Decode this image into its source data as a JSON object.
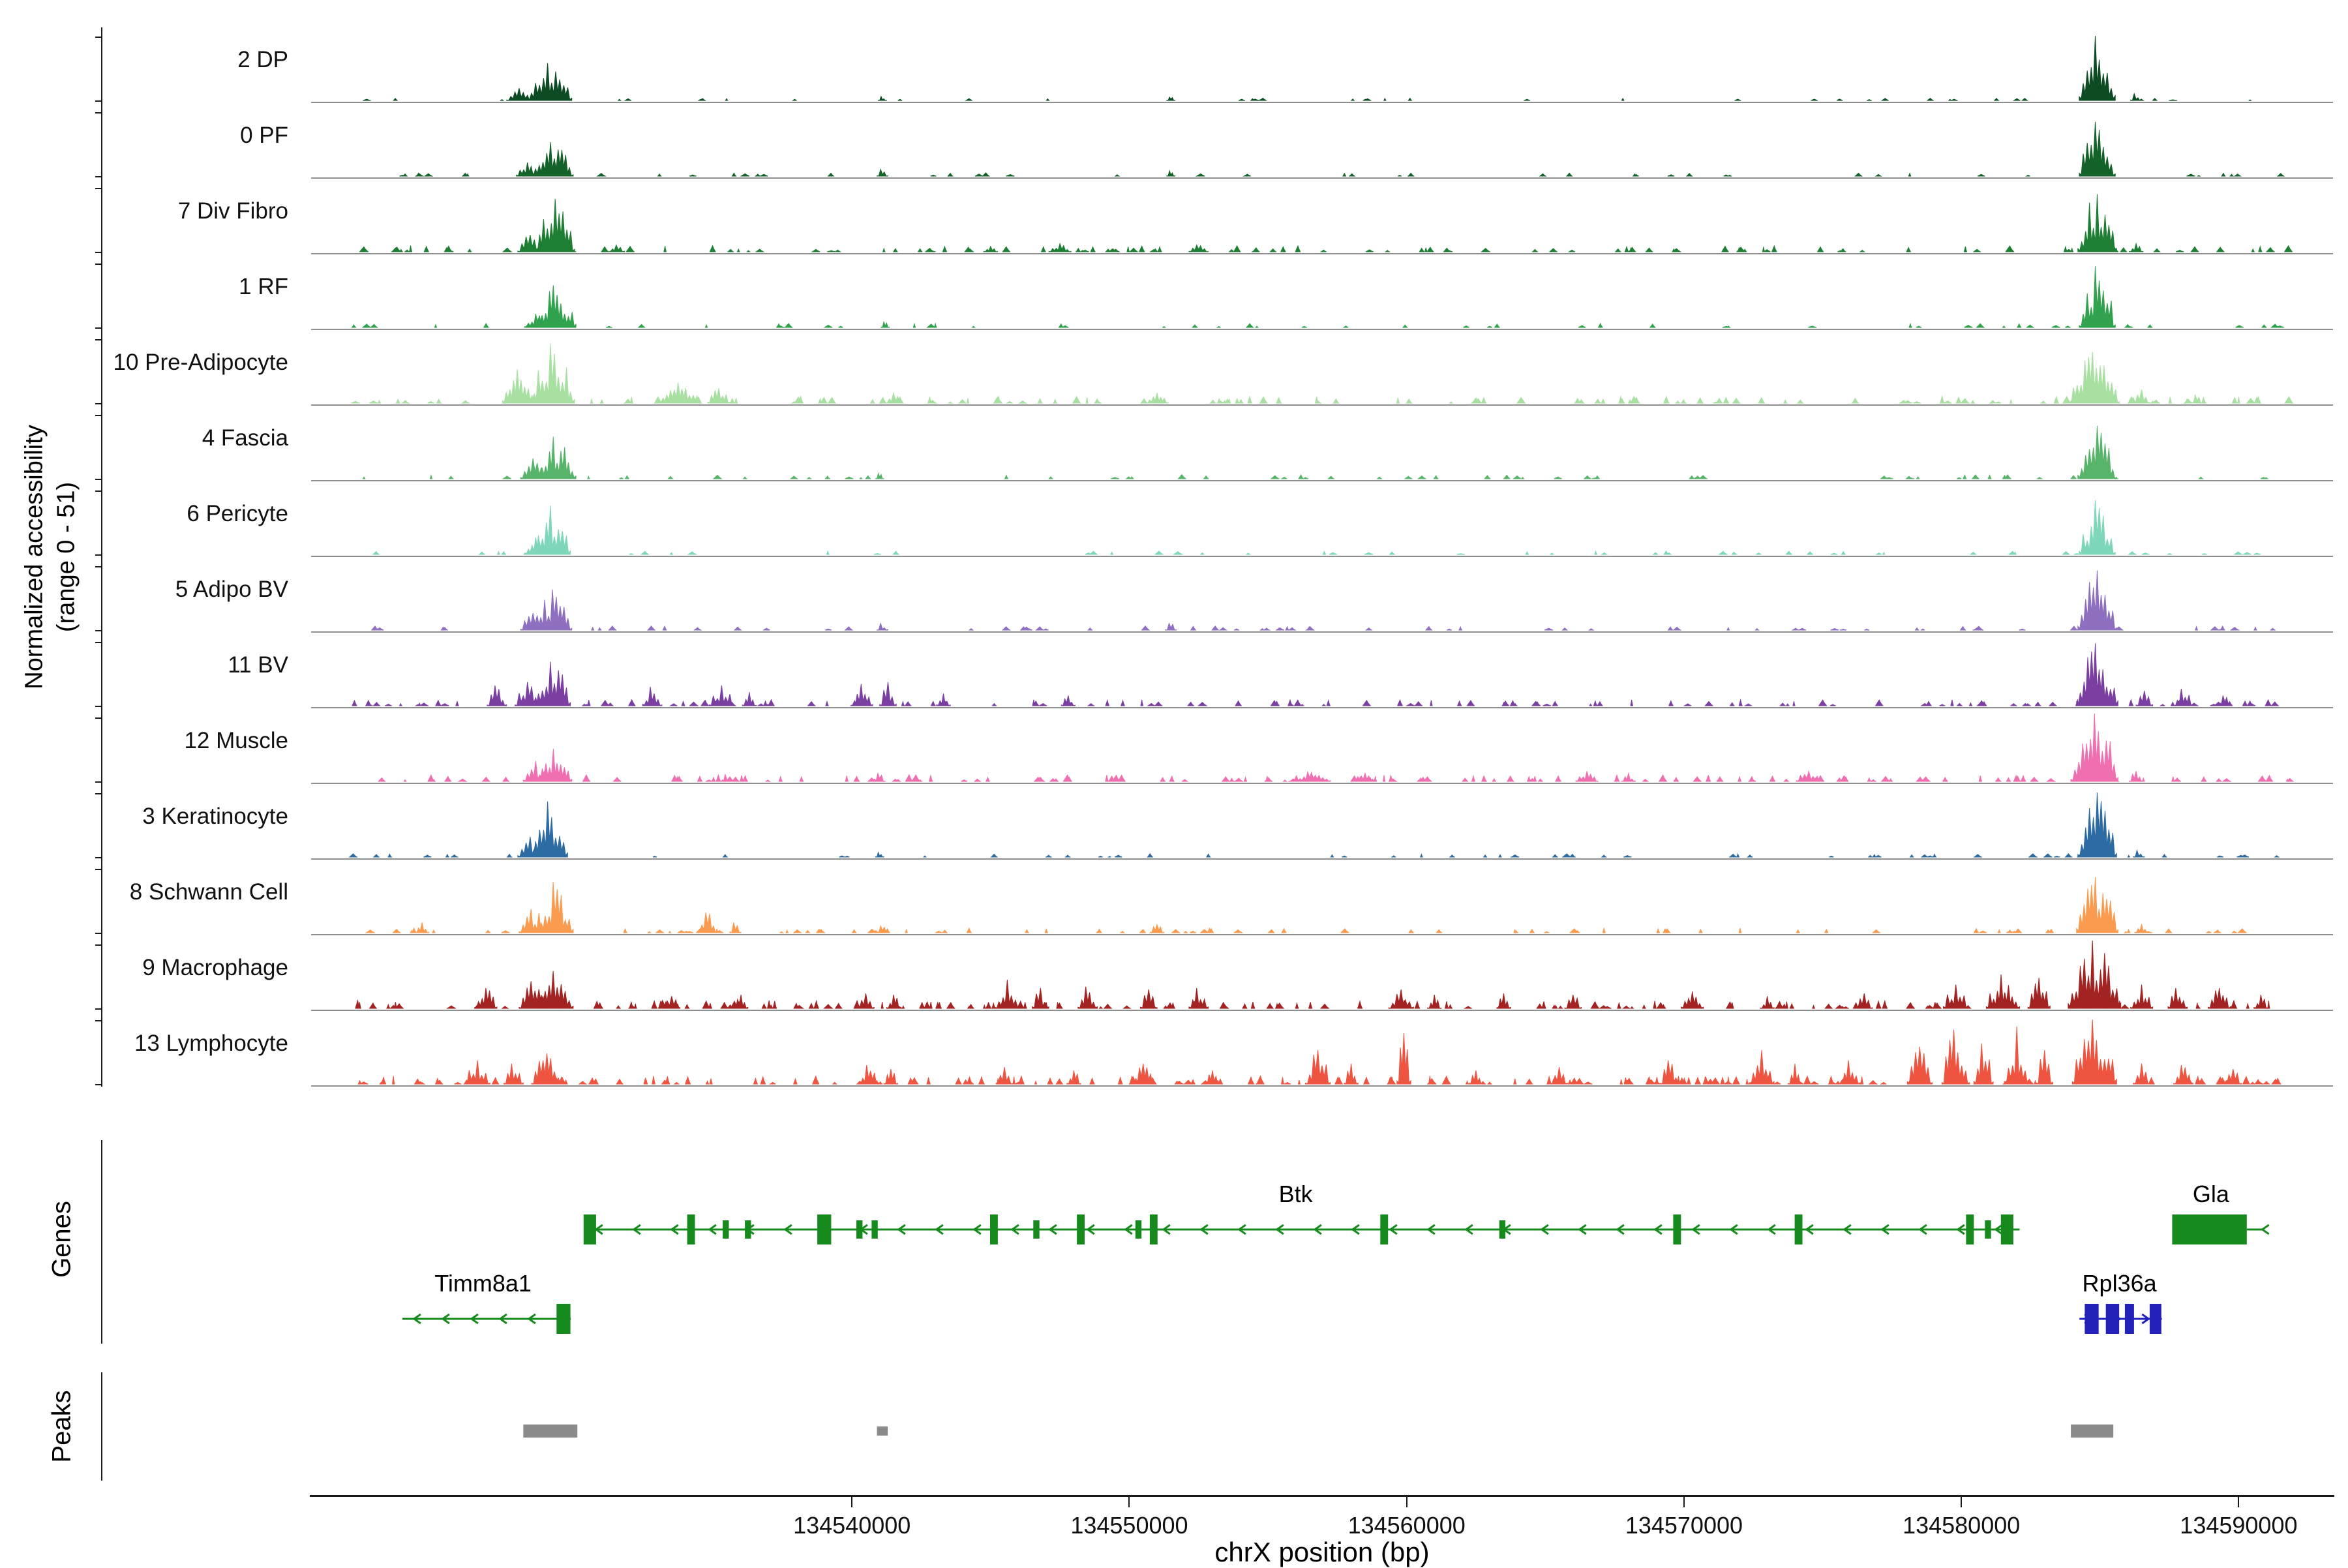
{
  "y_axis": {
    "line1": "Normalized accessibility",
    "line2": "(range 0 - 51)"
  },
  "sections": {
    "genes": "Genes",
    "peaks": "Peaks"
  },
  "x_axis": {
    "title": "chrX position (bp)"
  },
  "chart_data": {
    "type": "area",
    "subtype": "genome-coverage-tracks",
    "title": "",
    "xlabel": "chrX position (bp)",
    "ylabel": "Normalized accessibility (range 0 - 51)",
    "chromosome": "chrX",
    "xlim": [
      134520500,
      134593400
    ],
    "xticks": [
      134540000,
      134550000,
      134560000,
      134570000,
      134580000,
      134590000
    ],
    "yrange": [
      0,
      51
    ],
    "tracks": [
      {
        "label": "2 DP",
        "color": "#0c4b23",
        "peaks": [
          [
            134528000,
            900,
            0.18
          ],
          [
            134529100,
            1600,
            0.55
          ],
          [
            134541100,
            300,
            0.06
          ],
          [
            134551500,
            300,
            0.05
          ],
          [
            134584900,
            1300,
            0.95
          ],
          [
            134586300,
            400,
            0.1
          ]
        ],
        "scatter": {
          "n": 40,
          "maxh": 0.035,
          "seed": 1
        }
      },
      {
        "label": "0 PF",
        "color": "#136229",
        "peaks": [
          [
            134528300,
            800,
            0.2
          ],
          [
            134529200,
            1500,
            0.5
          ],
          [
            134541100,
            400,
            0.1
          ],
          [
            134551500,
            300,
            0.08
          ],
          [
            134584900,
            1300,
            0.8
          ]
        ],
        "scatter": {
          "n": 50,
          "maxh": 0.05,
          "seed": 2
        }
      },
      {
        "label": "7 Div Fibro",
        "color": "#1e7e34",
        "peaks": [
          [
            134528400,
            900,
            0.25
          ],
          [
            134529300,
            1400,
            0.78
          ],
          [
            134531500,
            600,
            0.1
          ],
          [
            134545000,
            500,
            0.08
          ],
          [
            134547500,
            800,
            0.12
          ],
          [
            134552500,
            700,
            0.1
          ],
          [
            134584900,
            1400,
            0.85
          ],
          [
            134586300,
            500,
            0.12
          ]
        ],
        "scatter": {
          "n": 110,
          "maxh": 0.09,
          "seed": 3
        }
      },
      {
        "label": "1 RF",
        "color": "#31a24e",
        "peaks": [
          [
            134528600,
            800,
            0.2
          ],
          [
            134529300,
            1500,
            0.62
          ],
          [
            134541200,
            300,
            0.08
          ],
          [
            134584900,
            1300,
            0.9
          ]
        ],
        "scatter": {
          "n": 60,
          "maxh": 0.06,
          "seed": 4
        }
      },
      {
        "label": "10 Pre-Adipocyte",
        "color": "#a8e0a2",
        "peaks": [
          [
            134528000,
            1200,
            0.5
          ],
          [
            134529200,
            1600,
            0.88
          ],
          [
            134533800,
            1500,
            0.3
          ],
          [
            134535200,
            800,
            0.22
          ],
          [
            134541500,
            600,
            0.15
          ],
          [
            134551000,
            800,
            0.15
          ],
          [
            134584800,
            1800,
            0.75
          ],
          [
            134586500,
            600,
            0.2
          ],
          [
            134588500,
            400,
            0.12
          ]
        ],
        "scatter": {
          "n": 130,
          "maxh": 0.1,
          "seed": 5
        }
      },
      {
        "label": "4 Fascia",
        "color": "#57b46a",
        "peaks": [
          [
            134528500,
            900,
            0.3
          ],
          [
            134529300,
            1500,
            0.62
          ],
          [
            134541000,
            300,
            0.08
          ],
          [
            134584900,
            1400,
            0.78
          ]
        ],
        "scatter": {
          "n": 70,
          "maxh": 0.06,
          "seed": 6
        }
      },
      {
        "label": "6 Pericyte",
        "color": "#7ed7bb",
        "peaks": [
          [
            134528600,
            800,
            0.25
          ],
          [
            134529200,
            1300,
            0.72
          ],
          [
            134584900,
            1300,
            0.8
          ]
        ],
        "scatter": {
          "n": 55,
          "maxh": 0.05,
          "seed": 7
        }
      },
      {
        "label": "5 Adipo BV",
        "color": "#8f6fc0",
        "peaks": [
          [
            134528500,
            900,
            0.25
          ],
          [
            134529200,
            1400,
            0.6
          ],
          [
            134541100,
            400,
            0.1
          ],
          [
            134551500,
            400,
            0.1
          ],
          [
            134584900,
            1400,
            0.88
          ]
        ],
        "scatter": {
          "n": 75,
          "maxh": 0.06,
          "seed": 8
        }
      },
      {
        "label": "11 BV",
        "color": "#7b3fa2",
        "peaks": [
          [
            134527200,
            700,
            0.3
          ],
          [
            134528300,
            900,
            0.35
          ],
          [
            134529200,
            1300,
            0.65
          ],
          [
            134532800,
            700,
            0.28
          ],
          [
            134535300,
            900,
            0.3
          ],
          [
            134536300,
            500,
            0.2
          ],
          [
            134540400,
            700,
            0.32
          ],
          [
            134541300,
            600,
            0.35
          ],
          [
            134543300,
            500,
            0.18
          ],
          [
            134547800,
            500,
            0.15
          ],
          [
            134584900,
            1500,
            0.92
          ],
          [
            134586600,
            600,
            0.22
          ],
          [
            134588000,
            700,
            0.25
          ],
          [
            134589500,
            400,
            0.15
          ]
        ],
        "scatter": {
          "n": 140,
          "maxh": 0.09,
          "seed": 9
        }
      },
      {
        "label": "12 Muscle",
        "color": "#f06fb1",
        "peaks": [
          [
            134528600,
            900,
            0.3
          ],
          [
            134529300,
            1200,
            0.48
          ],
          [
            134535500,
            400,
            0.1
          ],
          [
            134541000,
            400,
            0.12
          ],
          [
            134556500,
            1500,
            0.14
          ],
          [
            134558500,
            800,
            0.12
          ],
          [
            134566500,
            800,
            0.15
          ],
          [
            134568000,
            500,
            0.12
          ],
          [
            134574500,
            900,
            0.15
          ],
          [
            134584800,
            1700,
            1.0
          ],
          [
            134586300,
            500,
            0.15
          ]
        ],
        "scatter": {
          "n": 150,
          "maxh": 0.1,
          "seed": 10
        }
      },
      {
        "label": "3 Keratinocyte",
        "color": "#2d6ba3",
        "peaks": [
          [
            134528400,
            900,
            0.3
          ],
          [
            134529100,
            1300,
            0.82
          ],
          [
            134541000,
            300,
            0.07
          ],
          [
            134584900,
            1400,
            0.95
          ],
          [
            134586400,
            400,
            0.1
          ]
        ],
        "scatter": {
          "n": 60,
          "maxh": 0.05,
          "seed": 11
        }
      },
      {
        "label": "8 Schwann Cell",
        "color": "#fa9b4f",
        "peaks": [
          [
            134524500,
            500,
            0.15
          ],
          [
            134528500,
            1000,
            0.35
          ],
          [
            134529300,
            1300,
            0.75
          ],
          [
            134534800,
            700,
            0.3
          ],
          [
            134535800,
            400,
            0.15
          ],
          [
            134541100,
            400,
            0.1
          ],
          [
            134551000,
            500,
            0.12
          ],
          [
            134584900,
            1500,
            0.82
          ],
          [
            134586500,
            500,
            0.12
          ]
        ],
        "scatter": {
          "n": 90,
          "maxh": 0.07,
          "seed": 12
        }
      },
      {
        "label": "9 Macrophage",
        "color": "#a32222",
        "peaks": [
          [
            134526800,
            800,
            0.3
          ],
          [
            134528500,
            1000,
            0.4
          ],
          [
            134529300,
            1300,
            0.55
          ],
          [
            134533500,
            600,
            0.18
          ],
          [
            134536000,
            500,
            0.2
          ],
          [
            134540500,
            600,
            0.22
          ],
          [
            134541500,
            500,
            0.2
          ],
          [
            134545600,
            900,
            0.42
          ],
          [
            134546800,
            600,
            0.3
          ],
          [
            134548500,
            700,
            0.32
          ],
          [
            134550700,
            600,
            0.28
          ],
          [
            134552500,
            700,
            0.3
          ],
          [
            134559800,
            900,
            0.28
          ],
          [
            134561000,
            500,
            0.2
          ],
          [
            134563500,
            500,
            0.22
          ],
          [
            134566000,
            600,
            0.2
          ],
          [
            134570300,
            800,
            0.25
          ],
          [
            134573000,
            500,
            0.18
          ],
          [
            134576500,
            600,
            0.22
          ],
          [
            134579800,
            900,
            0.35
          ],
          [
            134581500,
            1200,
            0.5
          ],
          [
            134582800,
            800,
            0.45
          ],
          [
            134584800,
            1900,
            1.0
          ],
          [
            134586500,
            800,
            0.35
          ],
          [
            134587800,
            700,
            0.3
          ],
          [
            134589300,
            800,
            0.3
          ],
          [
            134590800,
            500,
            0.2
          ]
        ],
        "scatter": {
          "n": 170,
          "maxh": 0.12,
          "seed": 13
        }
      },
      {
        "label": "13 Lymphocyte",
        "color": "#ee5440",
        "peaks": [
          [
            134526500,
            900,
            0.35
          ],
          [
            134527800,
            700,
            0.3
          ],
          [
            134529000,
            1100,
            0.45
          ],
          [
            134540600,
            700,
            0.28
          ],
          [
            134541400,
            500,
            0.22
          ],
          [
            134545500,
            600,
            0.25
          ],
          [
            134548000,
            500,
            0.2
          ],
          [
            134550500,
            800,
            0.3
          ],
          [
            134553000,
            500,
            0.2
          ],
          [
            134556800,
            900,
            0.5
          ],
          [
            134558000,
            500,
            0.3
          ],
          [
            134559900,
            500,
            0.75
          ],
          [
            134562500,
            500,
            0.2
          ],
          [
            134565500,
            600,
            0.25
          ],
          [
            134569500,
            700,
            0.35
          ],
          [
            134572800,
            900,
            0.5
          ],
          [
            134574000,
            500,
            0.3
          ],
          [
            134576000,
            700,
            0.35
          ],
          [
            134578500,
            900,
            0.55
          ],
          [
            134579800,
            1000,
            0.8
          ],
          [
            134580800,
            700,
            0.6
          ],
          [
            134582000,
            900,
            0.85
          ],
          [
            134583000,
            600,
            0.5
          ],
          [
            134584800,
            1600,
            0.95
          ],
          [
            134586500,
            600,
            0.3
          ],
          [
            134588000,
            700,
            0.28
          ],
          [
            134589800,
            600,
            0.22
          ]
        ],
        "scatter": {
          "n": 190,
          "maxh": 0.12,
          "seed": 14
        }
      }
    ],
    "genes": [
      {
        "name": "Btk",
        "color": "#178a1e",
        "start": 134530350,
        "end": 134582100,
        "strand": "-",
        "row": 0,
        "label_pos": 134556000,
        "exons": [
          [
            134530550,
            450,
            1
          ],
          [
            134534200,
            280,
            1
          ],
          [
            134535450,
            220,
            0
          ],
          [
            134536250,
            220,
            0
          ],
          [
            134539000,
            500,
            1
          ],
          [
            134540270,
            220,
            0
          ],
          [
            134540820,
            220,
            0
          ],
          [
            134545120,
            280,
            1
          ],
          [
            134546650,
            220,
            0
          ],
          [
            134548250,
            280,
            1
          ],
          [
            134550330,
            220,
            0
          ],
          [
            134550880,
            280,
            1
          ],
          [
            134559190,
            280,
            1
          ],
          [
            134563450,
            220,
            0
          ],
          [
            134569750,
            280,
            1
          ],
          [
            134574130,
            280,
            1
          ],
          [
            134580310,
            280,
            1
          ],
          [
            134580960,
            220,
            0
          ],
          [
            134581650,
            450,
            1
          ]
        ]
      },
      {
        "name": "Gla",
        "color": "#178a1e",
        "start": 134587600,
        "end": 134590290,
        "strand": "-",
        "row": 0,
        "label_pos": 134589000,
        "whole_box": true,
        "tail": 134590900,
        "exons": []
      },
      {
        "name": "Timm8a1",
        "color": "#178a1e",
        "start": 134523790,
        "end": 134529860,
        "strand": "-",
        "row": 1,
        "label_pos": 134526700,
        "exons": [
          [
            134529600,
            500,
            1
          ]
        ]
      },
      {
        "name": "Rpl36a",
        "color": "#2222bb",
        "start": 134584260,
        "end": 134587230,
        "strand": "+",
        "row": 1,
        "label_pos": 134585700,
        "exons": [
          [
            134584700,
            500,
            1
          ],
          [
            134585450,
            480,
            1
          ],
          [
            134586060,
            330,
            1
          ],
          [
            134587000,
            420,
            1
          ]
        ]
      }
    ],
    "peak_regions": [
      [
        134528150,
        134530100,
        20
      ],
      [
        134540900,
        134541290,
        14
      ],
      [
        134583950,
        134585480,
        20
      ]
    ],
    "peak_color": "#8a8a8a"
  }
}
